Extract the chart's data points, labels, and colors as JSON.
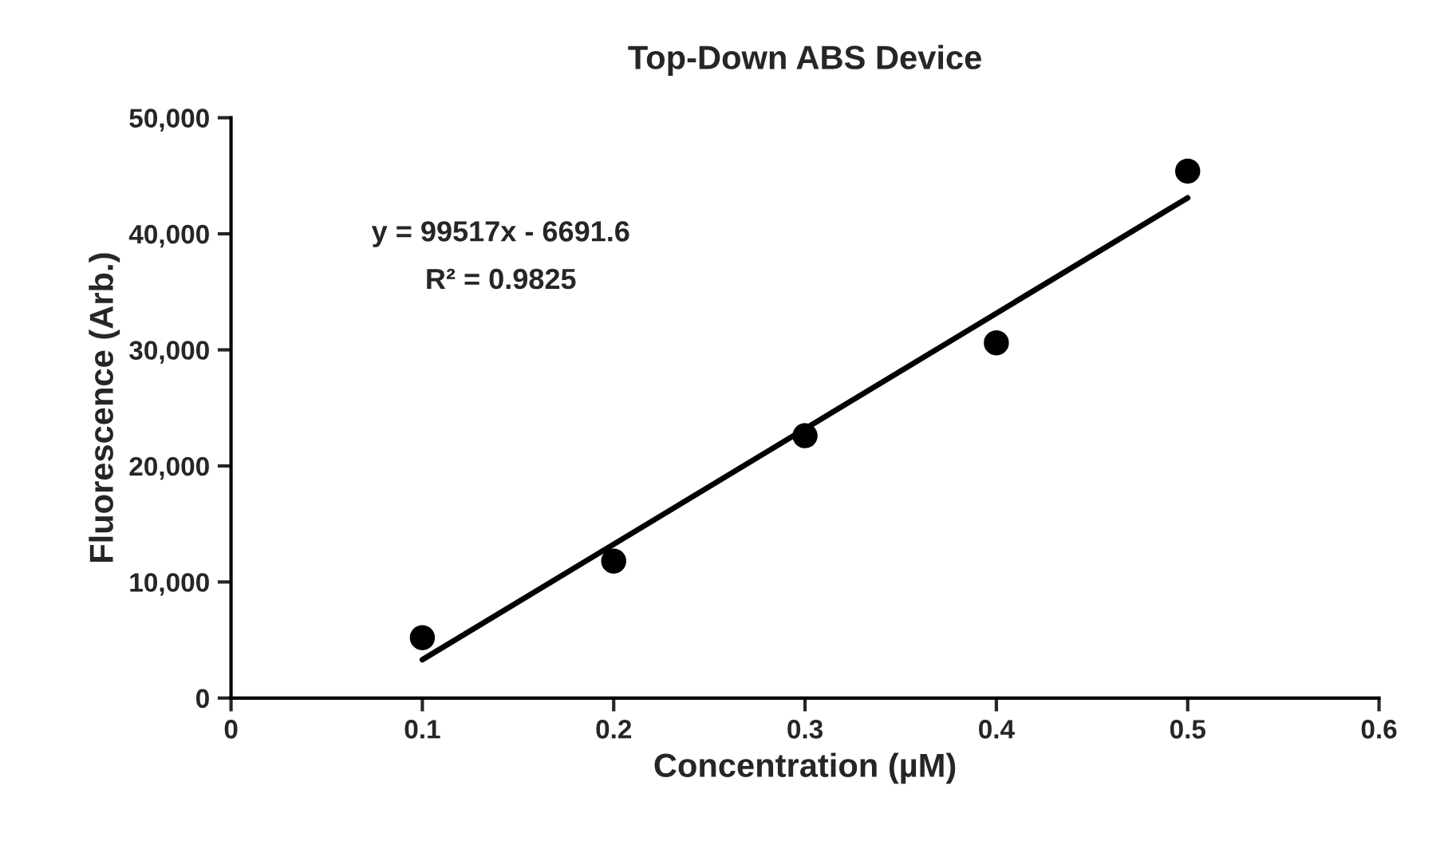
{
  "chart_data": {
    "type": "scatter",
    "title": "Top-Down ABS Device",
    "xlabel": "Concentration (µM)",
    "ylabel": "Fluorescence (Arb.)",
    "x": [
      0.1,
      0.2,
      0.3,
      0.4,
      0.5
    ],
    "series": [
      {
        "color": "#000000",
        "marker": "circle",
        "values": [
          5200,
          11800,
          22600,
          30600,
          45400
        ]
      },
      {
        "type": "line",
        "color": "#000000",
        "marker": "none",
        "x": [
          0.1,
          0.5
        ],
        "values": [
          3300,
          43100
        ]
      }
    ],
    "grid": false,
    "legend": false,
    "xlim": [
      0,
      0.6
    ],
    "xticks": [
      0,
      0.1,
      0.2,
      0.3,
      0.4,
      0.5,
      0.6
    ],
    "ylim": [
      0,
      50000
    ],
    "yticks": [
      {
        "value": 0,
        "label": "0"
      },
      {
        "value": 10000,
        "label": "10,000"
      },
      {
        "value": 20000,
        "label": "20,000"
      },
      {
        "value": 30000,
        "label": "30,000"
      },
      {
        "value": 40000,
        "label": "40,000"
      },
      {
        "value": 50000,
        "label": "50,000"
      }
    ],
    "annotations": [
      "y = 99517x - 6691.6",
      "R² = 0.9825"
    ]
  }
}
